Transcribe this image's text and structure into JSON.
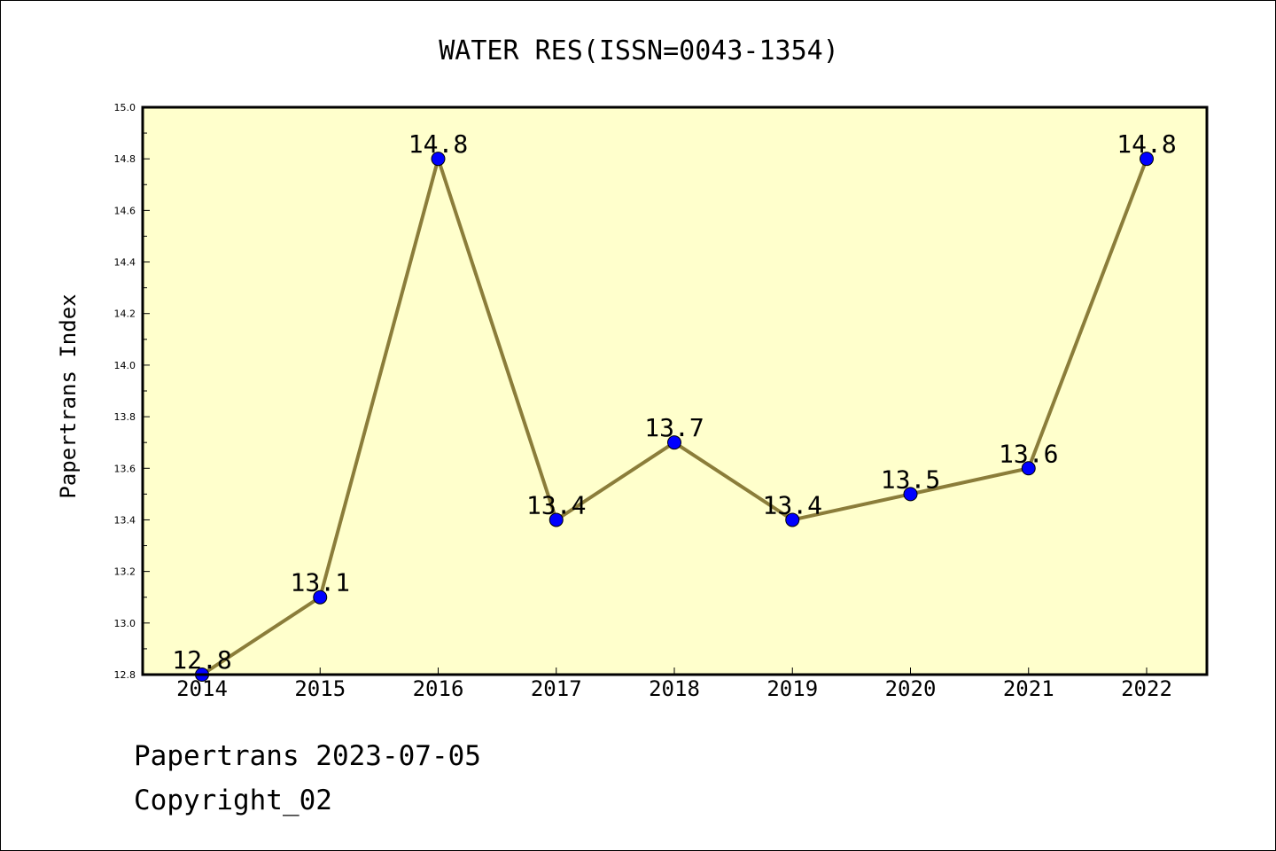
{
  "chart_data": {
    "type": "line",
    "title": "WATER RES(ISSN=0043-1354)",
    "xlabel": "",
    "ylabel": "Papertrans Index",
    "categories": [
      "2014",
      "2015",
      "2016",
      "2017",
      "2018",
      "2019",
      "2020",
      "2021",
      "2022"
    ],
    "values": [
      12.8,
      13.1,
      14.8,
      13.4,
      13.7,
      13.4,
      13.5,
      13.6,
      14.8
    ],
    "data_labels": [
      "12.8",
      "13.1",
      "14.8",
      "13.4",
      "13.7",
      "13.4",
      "13.5",
      "13.6",
      "14.8"
    ],
    "ylim": [
      12.8,
      15.0
    ],
    "yticks": [
      "12.8",
      "13.0",
      "13.2",
      "13.4",
      "13.6",
      "13.8",
      "14.0",
      "14.2",
      "14.4",
      "14.6",
      "14.8",
      "15.0"
    ],
    "grid": false,
    "legend": "none",
    "colors": {
      "plot_background": "#ffffcc",
      "line": "#8b7d3a",
      "marker": "#0000ff"
    }
  },
  "footer": {
    "date_text": "Papertrans 2023-07-05",
    "copyright_text": "Copyright_02"
  }
}
